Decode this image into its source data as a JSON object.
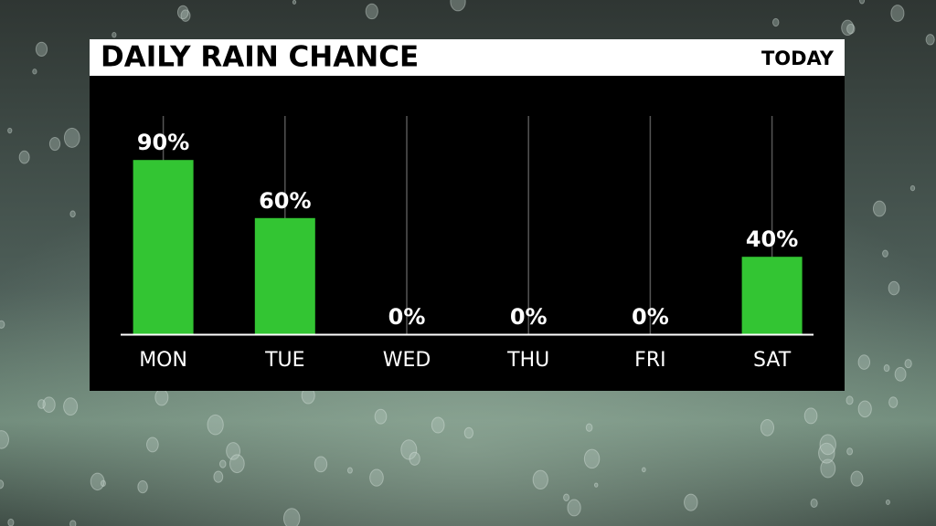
{
  "chart_data": {
    "type": "bar",
    "title": "DAILY RAIN CHANCE",
    "subtitle": "TODAY",
    "categories": [
      "MON",
      "TUE",
      "WED",
      "THU",
      "FRI",
      "SAT"
    ],
    "values": [
      90,
      60,
      0,
      0,
      0,
      40
    ],
    "value_labels": [
      "90%",
      "60%",
      "0%",
      "0%",
      "0%",
      "40%"
    ],
    "color": "#33c533",
    "ylim": [
      0,
      100
    ],
    "grid": true
  }
}
